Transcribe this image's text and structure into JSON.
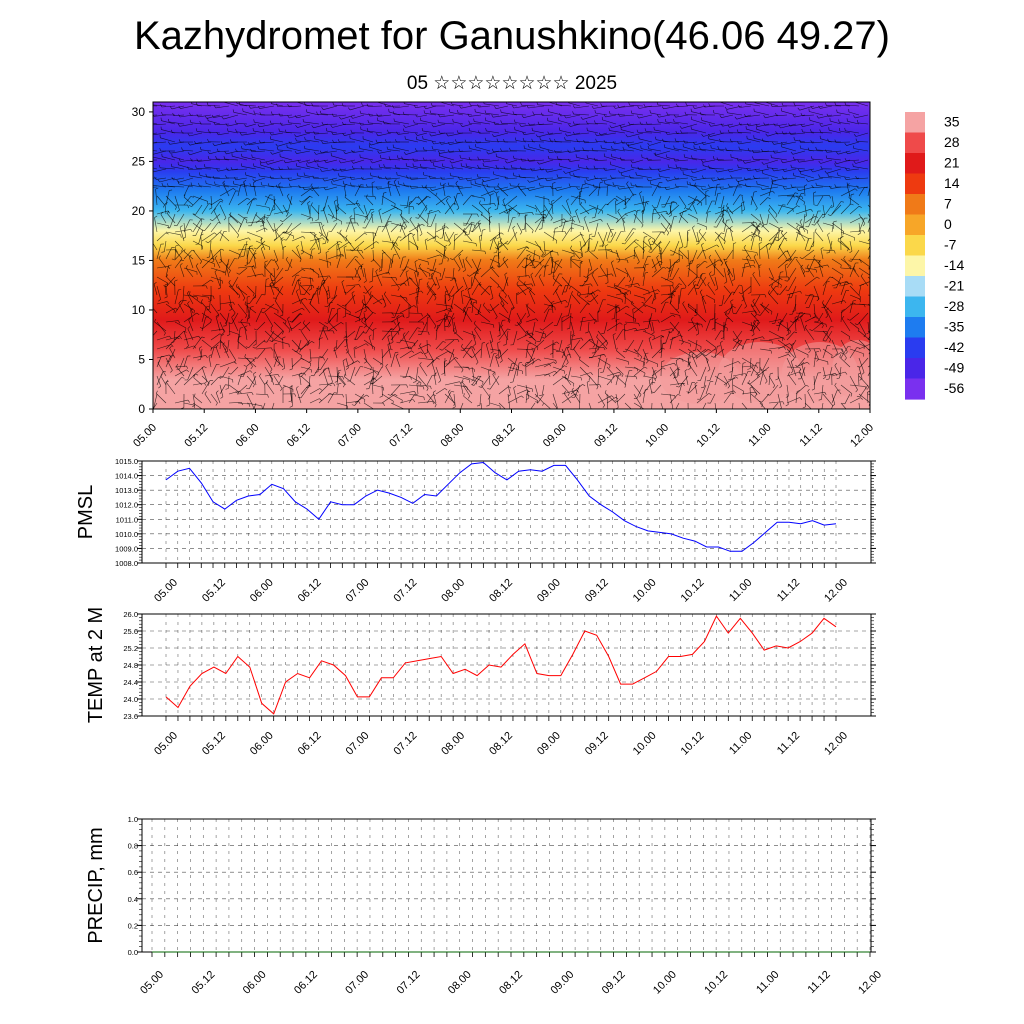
{
  "title": "Kazhydromet for Ganushkino(46.06 49.27)",
  "subtitle": "05 ☆☆☆☆☆☆☆☆ 2025",
  "time_labels": [
    "05.00",
    "05.12",
    "06.00",
    "06.12",
    "07.00",
    "07.12",
    "08.00",
    "08.12",
    "09.00",
    "09.12",
    "10.00",
    "10.12",
    "11.00",
    "11.12",
    "12.00"
  ],
  "chart_data": [
    {
      "type": "heatmap",
      "name": "vertical-cross-section",
      "x_categories": [
        "05.00",
        "05.12",
        "06.00",
        "06.12",
        "07.00",
        "07.12",
        "08.00",
        "08.12",
        "09.00",
        "09.12",
        "10.00",
        "10.12",
        "11.00",
        "11.12",
        "12.00"
      ],
      "ylim": [
        0,
        31
      ],
      "y_ticks": [
        0,
        5,
        10,
        15,
        20,
        25,
        30
      ],
      "colorbar": {
        "labels": [
          "35",
          "28",
          "21",
          "14",
          "7",
          "0",
          "-7",
          "-14",
          "-21",
          "-28",
          "-35",
          "-42",
          "-49",
          "-56"
        ],
        "colors": [
          "#f5a3a3",
          "#ef4a4a",
          "#e01a1a",
          "#ee3a10",
          "#f07a18",
          "#f7a628",
          "#fbd84a",
          "#fdf6a8",
          "#a8dcf6",
          "#3cb6ef",
          "#1e7cf0",
          "#2a3cf0",
          "#4a26e8",
          "#7a30ef"
        ]
      },
      "temperature_profile": {
        "heights": [
          0,
          3,
          6,
          9,
          12,
          15,
          16.5,
          18,
          20,
          22,
          24,
          25,
          26.5,
          28,
          31
        ],
        "values": [
          34,
          28,
          22,
          15,
          9,
          0,
          -9,
          -20,
          -30,
          -38,
          -46,
          -53,
          -47,
          -55,
          -58
        ]
      },
      "wind_barbs": true
    },
    {
      "type": "line",
      "name": "PMSL",
      "ylabel": "PMSL",
      "ylim": [
        1008.0,
        1015.0
      ],
      "y_ticks": [
        "1008.0",
        "1009.0",
        "1010.0",
        "1011.0",
        "1012.0",
        "1013.0",
        "1014.0",
        "1015.0"
      ],
      "color": "#0000ff",
      "values": [
        1013.7,
        1014.3,
        1014.5,
        1013.5,
        1012.2,
        1011.7,
        1012.3,
        1012.6,
        1012.7,
        1013.4,
        1013.1,
        1012.2,
        1011.7,
        1011.0,
        1012.2,
        1012.0,
        1012.0,
        1012.6,
        1013.0,
        1012.8,
        1012.5,
        1012.1,
        1012.7,
        1012.6,
        1013.4,
        1014.2,
        1014.8,
        1014.9,
        1014.2,
        1013.7,
        1014.3,
        1014.4,
        1014.3,
        1014.7,
        1014.7,
        1013.7,
        1012.6,
        1012.0,
        1011.5,
        1010.9,
        1010.5,
        1010.2,
        1010.1,
        1010.0,
        1009.7,
        1009.5,
        1009.1,
        1009.1,
        1008.8,
        1008.8,
        1009.4,
        1010.1,
        1010.8,
        1010.8,
        1010.7,
        1010.9,
        1010.6,
        1010.7
      ]
    },
    {
      "type": "line",
      "name": "TEMP at 2 M",
      "ylabel": "TEMP at 2 M",
      "ylim": [
        23.6,
        26.0
      ],
      "y_ticks": [
        "23.6",
        "24.0",
        "24.4",
        "24.8",
        "25.2",
        "25.6",
        "26.0"
      ],
      "color": "#ff0000",
      "values": [
        24.05,
        23.8,
        24.3,
        24.6,
        24.75,
        24.6,
        25.0,
        24.75,
        23.9,
        23.65,
        24.4,
        24.6,
        24.5,
        24.9,
        24.8,
        24.55,
        24.05,
        24.05,
        24.5,
        24.5,
        24.85,
        24.9,
        24.95,
        25.0,
        24.6,
        24.7,
        24.55,
        24.8,
        24.75,
        25.05,
        25.3,
        24.6,
        24.55,
        24.55,
        25.05,
        25.6,
        25.5,
        25.0,
        24.35,
        24.35,
        24.5,
        24.65,
        25.0,
        25.0,
        25.05,
        25.35,
        25.95,
        25.55,
        25.9,
        25.55,
        25.15,
        25.25,
        25.2,
        25.35,
        25.55,
        25.9,
        25.7
      ]
    },
    {
      "type": "line",
      "name": "PRECIP, mm",
      "ylabel": "PRECIP, mm",
      "ylim": [
        0.0,
        1.0
      ],
      "y_ticks": [
        "0.0",
        "0.2",
        "0.4",
        "0.6",
        "0.8",
        "1.0"
      ],
      "color": "#006400",
      "values": [
        0,
        0,
        0,
        0,
        0,
        0,
        0,
        0,
        0,
        0,
        0,
        0,
        0,
        0,
        0,
        0,
        0,
        0,
        0,
        0,
        0,
        0,
        0,
        0,
        0,
        0,
        0,
        0,
        0,
        0,
        0,
        0,
        0,
        0,
        0,
        0,
        0,
        0,
        0,
        0,
        0,
        0,
        0,
        0,
        0,
        0,
        0,
        0,
        0,
        0,
        0,
        0,
        0,
        0,
        0,
        0,
        0
      ]
    }
  ]
}
